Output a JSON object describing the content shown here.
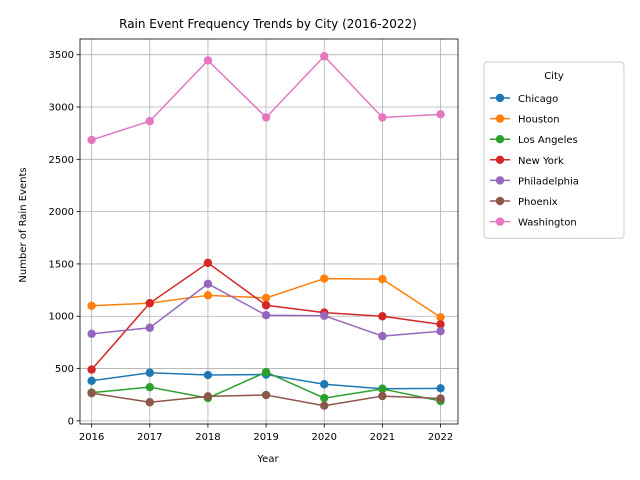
{
  "chart_data": {
    "type": "line",
    "title": "Rain Event Frequency Trends by City (2016-2022)",
    "xlabel": "Year",
    "ylabel": "Number of Rain Events",
    "x": [
      2016,
      2017,
      2018,
      2019,
      2020,
      2021,
      2022
    ],
    "xlim": [
      2015.8,
      2022.3
    ],
    "ylim": [
      -30,
      3650
    ],
    "yticks": [
      0,
      500,
      1000,
      1500,
      2000,
      2500,
      3000,
      3500
    ],
    "grid": true,
    "legend": {
      "title": "City",
      "placement": "outside-upper-right"
    },
    "series": [
      {
        "name": "Chicago",
        "color": "#1f77b4",
        "values": [
          383,
          460,
          438,
          443,
          350,
          307,
          311
        ]
      },
      {
        "name": "Houston",
        "color": "#ff7f0e",
        "values": [
          1100,
          1125,
          1200,
          1175,
          1360,
          1355,
          990
        ]
      },
      {
        "name": "Los Angeles",
        "color": "#2ca02c",
        "values": [
          270,
          322,
          218,
          466,
          218,
          305,
          190
        ]
      },
      {
        "name": "New York",
        "color": "#d62728",
        "values": [
          490,
          1125,
          1510,
          1105,
          1035,
          1000,
          922
        ]
      },
      {
        "name": "Philadelphia",
        "color": "#9467bd",
        "values": [
          832,
          890,
          1310,
          1010,
          1005,
          810,
          857
        ]
      },
      {
        "name": "Phoenix",
        "color": "#8c564b",
        "values": [
          265,
          178,
          234,
          247,
          145,
          237,
          214
        ]
      },
      {
        "name": "Washington",
        "color": "#e377c2",
        "values": [
          2685,
          2865,
          3445,
          2900,
          3485,
          2900,
          2930
        ]
      }
    ]
  }
}
